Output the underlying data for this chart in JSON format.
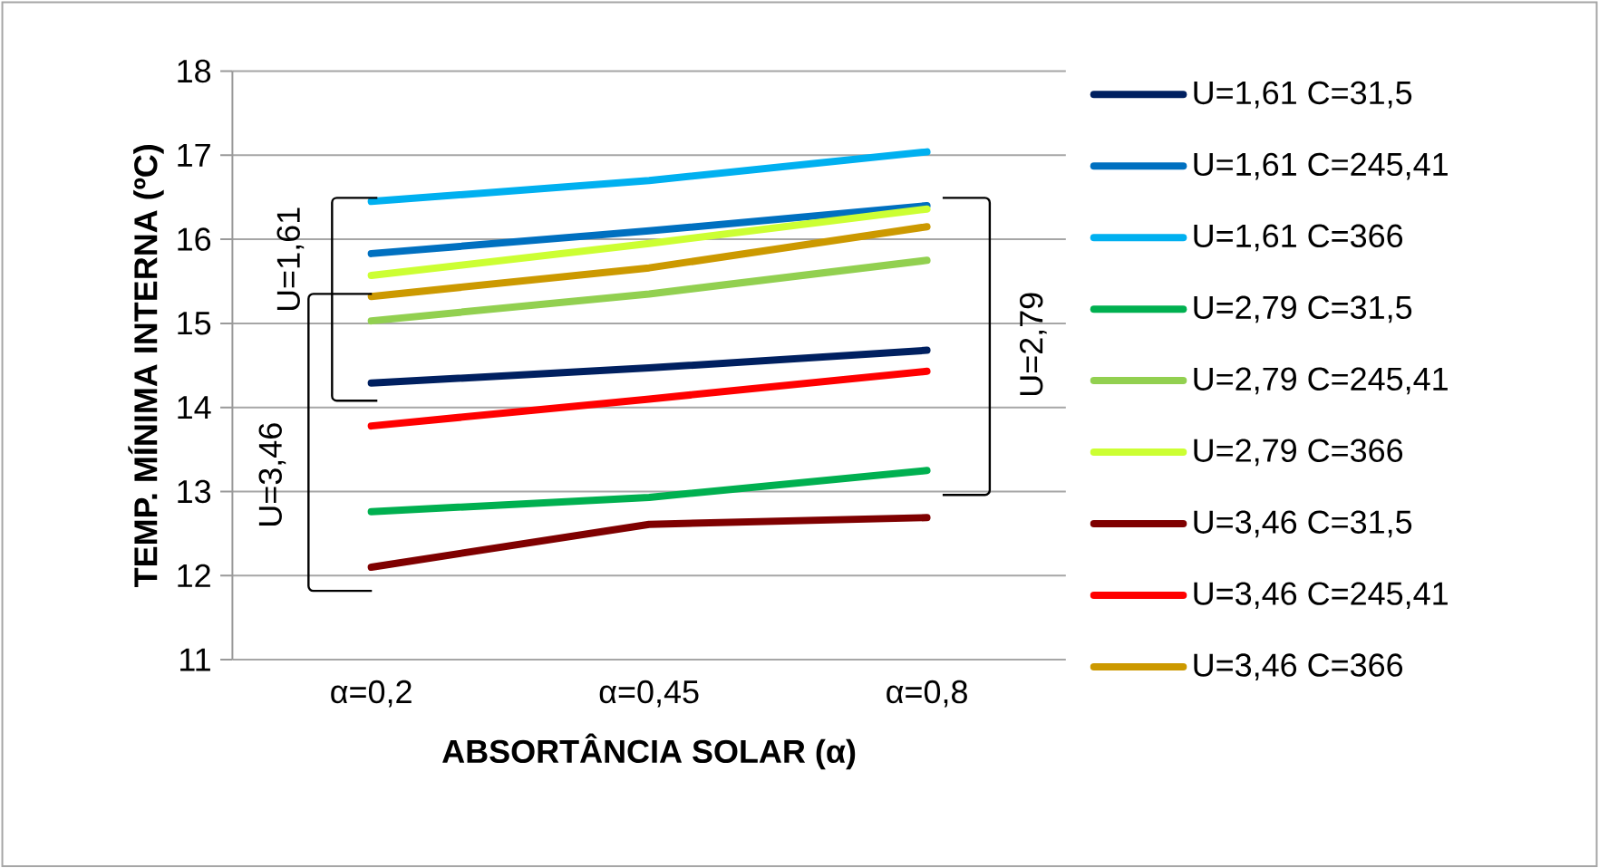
{
  "chart_data": {
    "type": "line",
    "xlabel": "ABSORTÂNCIA SOLAR (α)",
    "ylabel": "TEMP. MÍNIMA INTERNA (ºC)",
    "categories": [
      "α=0,2",
      "α=0,45",
      "α=0,8"
    ],
    "series": [
      {
        "name": "U=1,61 C=31,5",
        "color": "#002060",
        "values": [
          14.29,
          14.47,
          14.68
        ]
      },
      {
        "name": "U=1,61 C=245,41",
        "color": "#0070c0",
        "values": [
          15.83,
          16.1,
          16.4
        ]
      },
      {
        "name": "U=1,61 C=366",
        "color": "#00b0f0",
        "values": [
          16.45,
          16.7,
          17.04
        ]
      },
      {
        "name": "U=2,79 C=31,5",
        "color": "#00b050",
        "values": [
          12.76,
          12.93,
          13.25
        ]
      },
      {
        "name": "U=2,79 C=245,41",
        "color": "#92d050",
        "values": [
          15.03,
          15.35,
          15.75
        ]
      },
      {
        "name": "U=2,79 C=366",
        "color": "#ccff33",
        "values": [
          15.57,
          15.95,
          16.36
        ]
      },
      {
        "name": "U=3,46 C=31,5",
        "color": "#7f0000",
        "values": [
          12.1,
          12.61,
          12.69
        ]
      },
      {
        "name": "U=3,46 C=245,41",
        "color": "#ff0000",
        "values": [
          13.78,
          14.1,
          14.43
        ]
      },
      {
        "name": "U=3,46 C=366",
        "color": "#cc9900",
        "values": [
          15.32,
          15.66,
          16.15
        ]
      }
    ],
    "ylim": [
      11,
      18
    ],
    "yticks": [
      11,
      12,
      13,
      14,
      15,
      16,
      17,
      18
    ],
    "grid": "y",
    "legend": "right",
    "marker": "none",
    "line_style": "solid",
    "annotations": [
      "U=1,61",
      "U=3,46",
      "U=2,79"
    ]
  }
}
